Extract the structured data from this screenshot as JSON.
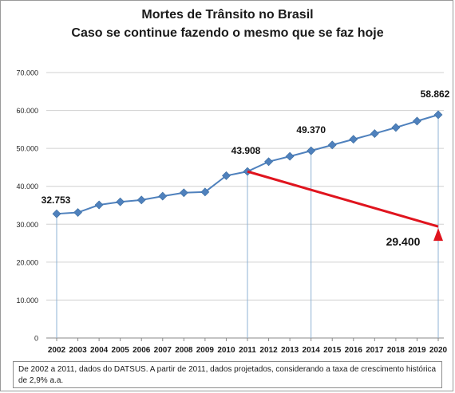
{
  "chart_data": {
    "type": "line",
    "title": "Mortes de Trânsito no Brasil",
    "subtitle": "Caso se continue fazendo o mesmo que se faz hoje",
    "xlabel": "",
    "ylabel": "",
    "ylim": [
      0,
      70000
    ],
    "y_ticks": [
      "0",
      "10.000",
      "20.000",
      "30.000",
      "40.000",
      "50.000",
      "60.000",
      "70.000"
    ],
    "grid": true,
    "legend": "none",
    "categories": [
      "2002",
      "2003",
      "2004",
      "2005",
      "2006",
      "2007",
      "2008",
      "2009",
      "2010",
      "2011",
      "2012",
      "2013",
      "2014",
      "2015",
      "2016",
      "2017",
      "2018",
      "2019",
      "2020"
    ],
    "series": [
      {
        "values": [
          32753,
          33100,
          35100,
          35900,
          36400,
          37400,
          38300,
          38500,
          42800,
          43908,
          46500,
          47900,
          49370,
          50900,
          52400,
          53900,
          55500,
          57200,
          58862
        ],
        "color": "#4f81bd"
      },
      {
        "x": [
          "2011",
          "2020"
        ],
        "values": [
          43908,
          29400
        ],
        "color": "#e0141e"
      }
    ],
    "annotations": [
      {
        "text": "32.753",
        "x": "2002",
        "y": 32753
      },
      {
        "text": "43.908",
        "x": "2011",
        "y": 43908
      },
      {
        "text": "49.370",
        "x": "2014",
        "y": 49370
      },
      {
        "text": "58.862",
        "x": "2020",
        "y": 58862
      },
      {
        "text": "29.400",
        "x": "2020",
        "y": 29400
      }
    ],
    "drop_lines": [
      "2002",
      "2011",
      "2014",
      "2020"
    ],
    "footnote": "De 2002 a 2011, dados do DATSUS.  A partir de 2011, dados projetados, considerando  a taxa de crescimento histórica de 2,9% a.a."
  }
}
